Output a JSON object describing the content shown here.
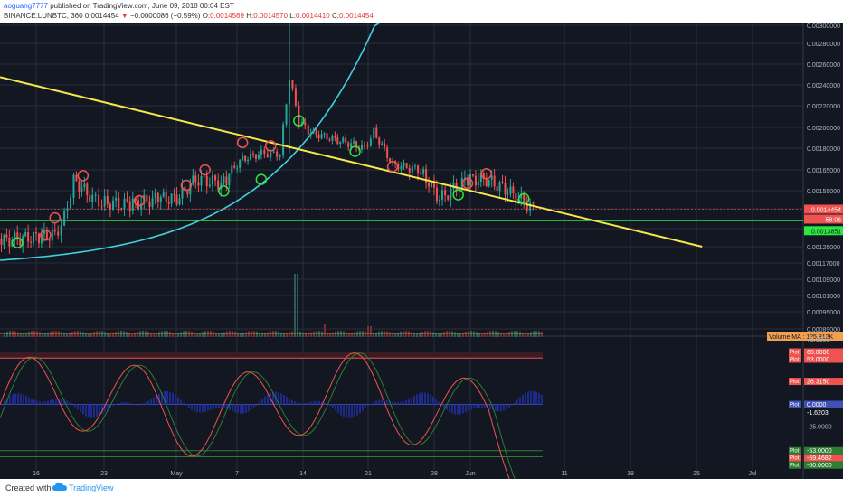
{
  "header": {
    "user": "aoguang7777",
    "published": "published on TradingView.com, June 09, 2018 00:04 EST",
    "symbol": "BINANCE:LUNBTC, 360",
    "last": "0.0014454",
    "change": "−0.0000086 (−0.59%)",
    "o_label": "O:",
    "o": "0.0014569",
    "h_label": "H:",
    "h": "0.0014570",
    "l_label": "L:",
    "l": "0.0014410",
    "c_label": "C:",
    "c": "0.0014454"
  },
  "footer": {
    "created_with": "Created with",
    "brand": "TradingView",
    "logo_icon": "tradingview-cloud-icon"
  },
  "colors": {
    "background": "#131722",
    "up": "#26a69a",
    "down": "#ef5350",
    "trendline": "#f5e84a",
    "curve": "#40d0e0",
    "support": "#2ee640",
    "grid": "#2a2e39"
  },
  "chart_data": [
    {
      "type": "candlestick",
      "title": "BINANCE:LUNBTC, 360",
      "y_axis_ticks": [
        "0.00300000",
        "0.00280000",
        "0.00260000",
        "0.00240000",
        "0.00220000",
        "0.00200000",
        "0.00180000",
        "0.00165000",
        "0.00155000",
        "0.00145000",
        "0.00135000",
        "0.00125000",
        "0.00117000",
        "0.00109000",
        "0.00101000",
        "0.00095000",
        "0.00089000"
      ],
      "x_axis_ticks": [
        "16",
        "23",
        "May",
        "7",
        "14",
        "21",
        "28",
        "Jun",
        "11",
        "18",
        "25",
        "Jul"
      ],
      "price_labels": [
        {
          "text": "0.0014454",
          "color": "#ef5350"
        },
        {
          "text": "58:06",
          "color": "#ef5350"
        },
        {
          "text": "0.0013851",
          "color": "#2ee640"
        }
      ],
      "support_level": 0.0013851,
      "last_price": 0.0014454,
      "trendline": [
        {
          "date": "2018-04-09",
          "price": 0.0025
        },
        {
          "date": "2018-06-26",
          "price": 0.00125
        }
      ],
      "approx_close_path": [
        [
          "2018-04-09",
          0.00125
        ],
        [
          "2018-04-12",
          0.00128
        ],
        [
          "2018-04-16",
          0.0013
        ],
        [
          "2018-04-18",
          0.00131
        ],
        [
          "2018-04-19",
          0.0014
        ],
        [
          "2018-04-20",
          0.0016
        ],
        [
          "2018-04-22",
          0.0015
        ],
        [
          "2018-04-23",
          0.00148
        ],
        [
          "2018-04-26",
          0.00147
        ],
        [
          "2018-04-29",
          0.0015
        ],
        [
          "2018-05-01",
          0.0015
        ],
        [
          "2018-05-03",
          0.0016
        ],
        [
          "2018-05-06",
          0.00158
        ],
        [
          "2018-05-08",
          0.00175
        ],
        [
          "2018-05-10",
          0.0018
        ],
        [
          "2018-05-11",
          0.0018
        ],
        [
          "2018-05-12",
          0.0018
        ],
        [
          "2018-05-13",
          0.0025
        ],
        [
          "2018-05-14",
          0.0021
        ],
        [
          "2018-05-15",
          0.002
        ],
        [
          "2018-05-17",
          0.00195
        ],
        [
          "2018-05-19",
          0.0019
        ],
        [
          "2018-05-21",
          0.00185
        ],
        [
          "2018-05-22",
          0.002
        ],
        [
          "2018-05-24",
          0.0017
        ],
        [
          "2018-05-27",
          0.00165
        ],
        [
          "2018-05-29",
          0.0015
        ],
        [
          "2018-06-01",
          0.0016
        ],
        [
          "2018-06-03",
          0.0016
        ],
        [
          "2018-06-05",
          0.00155
        ],
        [
          "2018-06-07",
          0.00148
        ],
        [
          "2018-06-08",
          0.00145
        ]
      ],
      "markers": [
        {
          "date": "2018-04-14",
          "price": 0.00127,
          "kind": "buy"
        },
        {
          "date": "2018-04-17",
          "price": 0.00131,
          "kind": "sell"
        },
        {
          "date": "2018-04-18",
          "price": 0.0014,
          "kind": "sell"
        },
        {
          "date": "2018-04-21",
          "price": 0.00162,
          "kind": "sell"
        },
        {
          "date": "2018-04-27",
          "price": 0.00149,
          "kind": "sell"
        },
        {
          "date": "2018-05-02",
          "price": 0.00157,
          "kind": "sell"
        },
        {
          "date": "2018-05-04",
          "price": 0.00165,
          "kind": "sell"
        },
        {
          "date": "2018-05-06",
          "price": 0.00154,
          "kind": "buy"
        },
        {
          "date": "2018-05-08",
          "price": 0.0019,
          "kind": "sell"
        },
        {
          "date": "2018-05-10",
          "price": 0.0016,
          "kind": "buy"
        },
        {
          "date": "2018-05-11",
          "price": 0.00187,
          "kind": "sell"
        },
        {
          "date": "2018-05-14",
          "price": 0.0021,
          "kind": "buy"
        },
        {
          "date": "2018-05-20",
          "price": 0.00182,
          "kind": "buy"
        },
        {
          "date": "2018-05-24",
          "price": 0.00168,
          "kind": "sell"
        },
        {
          "date": "2018-06-01",
          "price": 0.00158,
          "kind": "sell"
        },
        {
          "date": "2018-05-31",
          "price": 0.00152,
          "kind": "buy"
        },
        {
          "date": "2018-06-03",
          "price": 0.00163,
          "kind": "sell"
        },
        {
          "date": "2018-06-07",
          "price": 0.0015,
          "kind": "buy"
        }
      ]
    },
    {
      "type": "bar",
      "title": "Volume MA",
      "label": "Volume MA",
      "value_label": "125.812K"
    },
    {
      "type": "line",
      "title": "Plot",
      "plot_labels": [
        {
          "name": "Plot",
          "value": "60.0000",
          "color": "#ef5350"
        },
        {
          "name": "Plot",
          "value": "53.0000",
          "color": "#ef5350"
        },
        {
          "name": "Plot",
          "value": "26.3150",
          "color": "#ef5350"
        },
        {
          "name": "Plot",
          "value": "0.0000",
          "color": "#3f51b5"
        },
        {
          "name": "",
          "value": "-1.6203",
          "color": "#131722"
        },
        {
          "name": "Plot",
          "value": "-53.0000",
          "color": "#2e7d32"
        },
        {
          "name": "Plot",
          "value": "-59.4682",
          "color": "#ef5350"
        },
        {
          "name": "Plot",
          "value": "-60.0000",
          "color": "#2e7d32"
        }
      ],
      "y_axis_ticks": [
        "75.0000",
        "-25.0000"
      ]
    }
  ]
}
